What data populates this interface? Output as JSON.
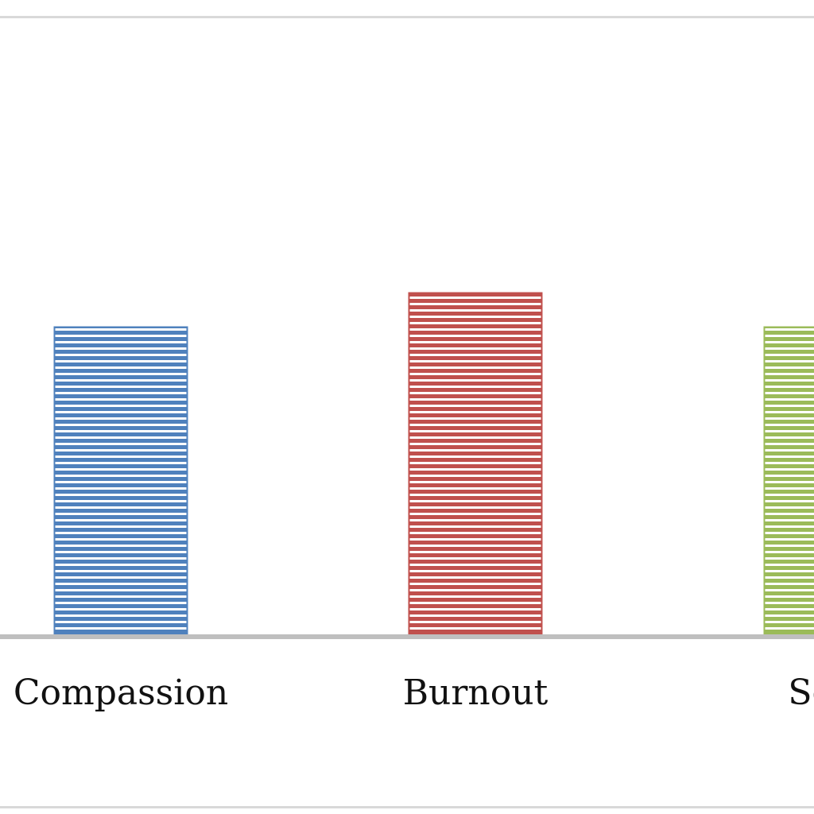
{
  "chart_data": {
    "type": "bar",
    "categories": [
      "Compassion",
      "Burnout",
      "Seco\nTra"
    ],
    "values": [
      9,
      10,
      9
    ],
    "ylim": [
      0,
      18
    ],
    "grid": false,
    "legend": "none",
    "colors": [
      "#4f81bd",
      "#c0504d",
      "#9bbb59"
    ],
    "stripe_color": "#ffffff"
  }
}
